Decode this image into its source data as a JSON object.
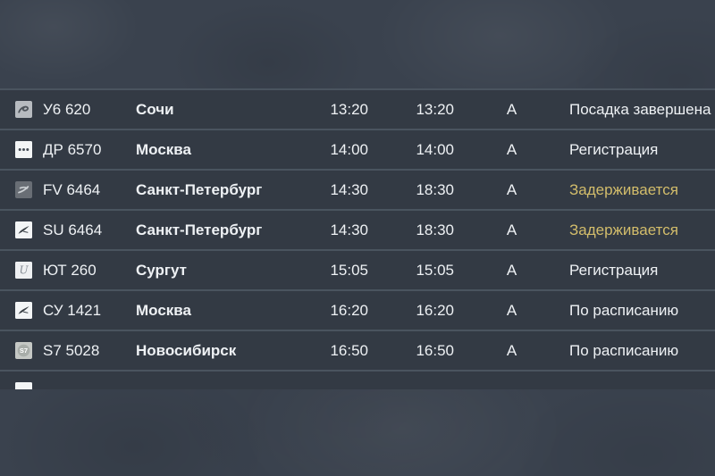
{
  "colors": {
    "background": "#3a424e",
    "row_background": "#333a44",
    "row_separator": "#4a545f",
    "text": "#eef1f4",
    "status_delayed": "#d3bd6b"
  },
  "flights": [
    {
      "logo": "ural-airlines-logo",
      "flight": "У6 620",
      "city": "Сочи",
      "scheduled": "13:20",
      "actual": "13:20",
      "terminal": "А",
      "status": "Посадка завершена",
      "delayed": false
    },
    {
      "logo": "three-dots-logo",
      "flight": "ДР 6570",
      "city": "Москва",
      "scheduled": "14:00",
      "actual": "14:00",
      "terminal": "А",
      "status": "Регистрация",
      "delayed": false
    },
    {
      "logo": "rossiya-logo",
      "flight": "FV 6464",
      "city": "Санкт-Петербург",
      "scheduled": "14:30",
      "actual": "18:30",
      "terminal": "А",
      "status": "Задерживается",
      "delayed": true
    },
    {
      "logo": "aeroflot-logo",
      "flight": "SU 6464",
      "city": "Санкт-Петербург",
      "scheduled": "14:30",
      "actual": "18:30",
      "terminal": "А",
      "status": "Задерживается",
      "delayed": true
    },
    {
      "logo": "utair-logo",
      "flight": "ЮТ 260",
      "city": "Сургут",
      "scheduled": "15:05",
      "actual": "15:05",
      "terminal": "А",
      "status": "Регистрация",
      "delayed": false
    },
    {
      "logo": "aeroflot-logo",
      "flight": "СУ 1421",
      "city": "Москва",
      "scheduled": "16:20",
      "actual": "16:20",
      "terminal": "А",
      "status": "По расписанию",
      "delayed": false
    },
    {
      "logo": "s7-logo",
      "flight": "S7 5028",
      "city": "Новосибирск",
      "scheduled": "16:50",
      "actual": "16:50",
      "terminal": "А",
      "status": "По расписанию",
      "delayed": false
    }
  ],
  "partial_next_row": {
    "logo": "white-square-logo"
  }
}
